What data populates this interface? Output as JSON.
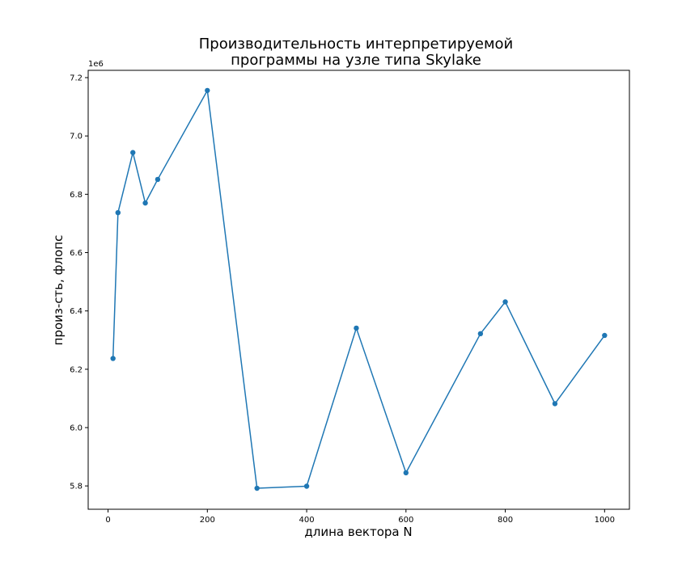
{
  "chart_data": {
    "type": "line",
    "title_line1": "Производительность интерпретируемой",
    "title_line2": "программы на узле типа Skylake",
    "xlabel": "длина вектора N",
    "ylabel": "произ-сть, флопс",
    "y_offset_label": "1e6",
    "xlim": [
      -40,
      1050
    ],
    "ylim": [
      5.72,
      7.225
    ],
    "y_scale_factor": 1000000,
    "x_ticks": [
      0,
      200,
      400,
      600,
      800,
      1000
    ],
    "x_tick_labels": [
      "0",
      "200",
      "400",
      "600",
      "800",
      "1000"
    ],
    "y_ticks": [
      5.8,
      6.0,
      6.2,
      6.4,
      6.6,
      6.8,
      7.0,
      7.2
    ],
    "y_tick_labels": [
      "5.8",
      "6.0",
      "6.2",
      "6.4",
      "6.6",
      "6.8",
      "7.0",
      "7.2"
    ],
    "grid": false,
    "series": [
      {
        "color": "#1f77b4",
        "marker": "circle",
        "x": [
          10,
          20,
          50,
          75,
          100,
          200,
          300,
          400,
          500,
          600,
          750,
          800,
          900,
          1000
        ],
        "y": [
          6.237,
          6.737,
          6.943,
          6.77,
          6.851,
          7.156,
          5.792,
          5.799,
          6.341,
          5.845,
          6.322,
          6.431,
          6.082,
          6.316
        ]
      }
    ]
  }
}
